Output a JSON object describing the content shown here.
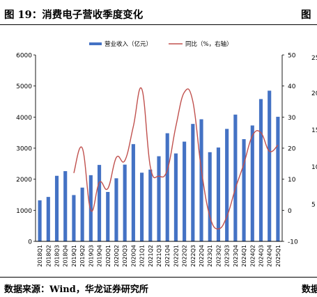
{
  "header": {
    "title": "图 19：消费电子营收季度变化",
    "title_right": "图"
  },
  "footer": {
    "source": "数据来源：Wind，华龙证券研究所",
    "source_right": "数据"
  },
  "right_partial_ticks": [
    "25",
    "20",
    "15",
    "10",
    "5"
  ],
  "colors": {
    "bar": "#4472C4",
    "line": "#C0504D",
    "axis": "#000000"
  },
  "chart_data": {
    "type": "bar",
    "categories": [
      "2018Q1",
      "2018Q2",
      "2018Q3",
      "2018Q4",
      "2019Q1",
      "2019Q2",
      "2019Q3",
      "2019Q4",
      "2020Q1",
      "2020Q2",
      "2020Q3",
      "2020Q4",
      "2021Q1",
      "2021Q2",
      "2021Q3",
      "2021Q4",
      "2022Q1",
      "2022Q2",
      "2022Q3",
      "2022Q4",
      "2023Q1",
      "2023Q2",
      "2023Q3",
      "2023Q4",
      "2024Q1",
      "2024Q2",
      "2024Q3",
      "2024Q4",
      "2025Q1"
    ],
    "y_left": {
      "ylim": [
        0,
        6000
      ],
      "ticks": [
        "0",
        "1000",
        "2000",
        "3000",
        "4000",
        "5000",
        "6000"
      ]
    },
    "y_right": {
      "ylim": [
        -10,
        50
      ],
      "ticks": [
        "-10",
        "0",
        "10",
        "20",
        "30",
        "40",
        "50"
      ]
    },
    "series": [
      {
        "name": "营业收入（亿元）",
        "type": "bar",
        "axis": "left",
        "values": [
          1320,
          1430,
          2110,
          2260,
          1490,
          1730,
          2130,
          2460,
          1590,
          2030,
          2470,
          3130,
          2210,
          2310,
          2740,
          3480,
          2830,
          3210,
          3780,
          3930,
          2870,
          3020,
          3620,
          4080,
          3290,
          3730,
          4580,
          4850,
          4010
        ]
      },
      {
        "name": "同比（%，右轴）",
        "type": "line",
        "axis": "right",
        "values": [
          null,
          null,
          null,
          null,
          12.0,
          20.0,
          0.0,
          9.0,
          7.0,
          17.0,
          16.0,
          27.0,
          39.0,
          14.0,
          11.0,
          13.0,
          27.0,
          38.0,
          35.0,
          13.0,
          -2.0,
          -6.0,
          -2.0,
          7.0,
          15.0,
          24.0,
          25.0,
          19.0,
          21.0
        ]
      }
    ]
  }
}
